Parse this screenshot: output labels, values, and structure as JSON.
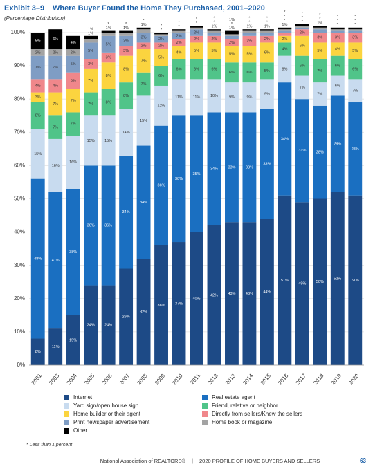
{
  "chart_data": {
    "type": "stacked_bar",
    "exhibit": "Exhibit 3–9",
    "title": "Where Buyer Found the Home They Purchased, 2001–2020",
    "subtitle": "(Percentage Distribution)",
    "categories": [
      "2001",
      "2003",
      "2004",
      "2005",
      "2006",
      "2007",
      "2008",
      "2009",
      "2010",
      "2011",
      "2012",
      "2013",
      "2014",
      "2015",
      "2016",
      "2017",
      "2018",
      "2019",
      "2020"
    ],
    "ylim": [
      0,
      100
    ],
    "yticks": [
      {
        "value": 0,
        "label": "0%"
      },
      {
        "value": 10,
        "label": "10%"
      },
      {
        "value": 20,
        "label": "20%"
      },
      {
        "value": 30,
        "label": "30%"
      },
      {
        "value": 40,
        "label": "40%"
      },
      {
        "value": 50,
        "label": "50%"
      },
      {
        "value": 60,
        "label": "60%"
      },
      {
        "value": 70,
        "label": "70%"
      },
      {
        "value": 80,
        "label": "80%"
      },
      {
        "value": 90,
        "label": "90%"
      },
      {
        "value": 100,
        "label": "100%"
      }
    ],
    "grid": true,
    "series": [
      {
        "name": "Internet",
        "color": "#1d4a86",
        "values": [
          8,
          11,
          15,
          24,
          24,
          29,
          32,
          36,
          37,
          40,
          42,
          43,
          43,
          44,
          51,
          49,
          50,
          52,
          51
        ],
        "value_labels": [
          "8%",
          "11%",
          "15%",
          "24%",
          "24%",
          "29%",
          "32%",
          "36%",
          "37%",
          "40%",
          "42%",
          "43%",
          "43%",
          "44%",
          "51%",
          "49%",
          "50%",
          "52%",
          "51%"
        ]
      },
      {
        "name": "Real estate agent",
        "color": "#1a6fc1",
        "values": [
          48,
          41,
          38,
          36,
          36,
          34,
          34,
          36,
          38,
          35,
          34,
          33,
          33,
          33,
          34,
          31,
          28,
          29,
          28
        ],
        "value_labels": [
          "48%",
          "41%",
          "38%",
          "36%",
          "36%",
          "34%",
          "34%",
          "36%",
          "38%",
          "35%",
          "34%",
          "33%",
          "33%",
          "33%",
          "34%",
          "31%",
          "28%",
          "29%",
          "28%"
        ]
      },
      {
        "name": "Yard sign/open house sign",
        "color": "#c8dbef",
        "values": [
          15,
          16,
          16,
          15,
          15,
          14,
          15,
          12,
          11,
          11,
          10,
          9,
          9,
          9,
          8,
          7,
          7,
          6,
          7
        ],
        "value_labels": [
          "15%",
          "16%",
          "16%",
          "15%",
          "15%",
          "14%",
          "15%",
          "12%",
          "11%",
          "11%",
          "10%",
          "9%",
          "9%",
          "9%",
          "8%",
          "7%",
          "7%",
          "6%",
          "7%"
        ]
      },
      {
        "name": "Friend, relative or neighbor",
        "color": "#50c489",
        "values": [
          8,
          7,
          7,
          7,
          8,
          8,
          7,
          6,
          6,
          6,
          6,
          6,
          6,
          5,
          4,
          6,
          7,
          6,
          6
        ],
        "value_labels": [
          "8%",
          "7%",
          "7%",
          "7%",
          "8%",
          "8%",
          "7%",
          "6%",
          "6%",
          "6%",
          "6%",
          "6%",
          "6%",
          "5%",
          "4%",
          "6%",
          "7%",
          "6%",
          "6%"
        ]
      },
      {
        "name": "Home builder or their agent",
        "color": "#fbd43f",
        "values": [
          3,
          7,
          7,
          7,
          8,
          8,
          7,
          5,
          4,
          5,
          5,
          5,
          5,
          6,
          2,
          6,
          5,
          4,
          5
        ],
        "value_labels": [
          "3%",
          "7%",
          "7%",
          "7%",
          "8%",
          "8%",
          "7%",
          "5%",
          "4%",
          "5%",
          "5%",
          "5%",
          "5%",
          "6%",
          "2%",
          "6%",
          "5%",
          "4%",
          "5%"
        ]
      },
      {
        "name": "Directly from sellers/Knew the sellers",
        "color": "#f0878b",
        "values": [
          4,
          4,
          5,
          3,
          3,
          3,
          2,
          2,
          2,
          2,
          2,
          2,
          3,
          2,
          1,
          2,
          3,
          3,
          3
        ],
        "value_labels": [
          "4%",
          "4%",
          "5%",
          "3%",
          "3%",
          "3%",
          "2%",
          "2%",
          "2%",
          "2%",
          "2%",
          "2%",
          "3%",
          "2%",
          "1%",
          "2%",
          "3%",
          "3%",
          "3%"
        ]
      },
      {
        "name": "Print newspaper advertisement",
        "color": "#7f9dc4",
        "values": [
          7,
          7,
          5,
          5,
          5,
          3,
          3,
          2,
          2,
          2,
          1,
          1,
          1,
          1,
          0.5,
          0.5,
          1,
          0.5,
          0.5
        ],
        "value_labels": [
          "7%",
          "7%",
          "5%",
          "5%",
          "5%",
          "3%",
          "3%",
          "2%",
          "2%",
          "2%",
          "1%",
          "1%",
          "1%",
          "1%",
          "*",
          "*",
          "1%",
          "*",
          "*"
        ]
      },
      {
        "name": "Home book or magazine",
        "color": "#a3a3a3",
        "values": [
          2,
          2,
          2,
          1,
          1,
          1,
          1,
          0.5,
          0.5,
          0.5,
          0.5,
          0.5,
          0.5,
          0.5,
          0.5,
          0.5,
          0.5,
          0.5,
          0.5
        ],
        "value_labels": [
          "2%",
          "2%",
          "2%",
          "1%",
          "1%",
          "1%",
          "1%",
          "*",
          "*",
          "*",
          "*",
          "*",
          "*",
          "*",
          "*",
          "*",
          "*",
          "*",
          "*"
        ]
      },
      {
        "name": "Other",
        "color": "#000000",
        "values": [
          5,
          6,
          4,
          1,
          0.5,
          0.5,
          0.5,
          0.5,
          0.5,
          0.5,
          0.5,
          1,
          0.5,
          0.5,
          0.5,
          0.5,
          0.5,
          0.5,
          0.5
        ],
        "value_labels": [
          "5%",
          "6%",
          "4%",
          "1%",
          "*",
          "*",
          "*",
          "*",
          "*",
          "*",
          "*",
          "1%",
          "*",
          "*",
          "*",
          "*",
          "*",
          "*",
          "*"
        ]
      }
    ],
    "footnote": "* Less than 1 percent",
    "footer_left": "National Association of REALTORS®",
    "footer_sep": "|",
    "footer_right": "2020 PROFILE OF HOME BUYERS AND SELLERS",
    "page_number": "63"
  }
}
